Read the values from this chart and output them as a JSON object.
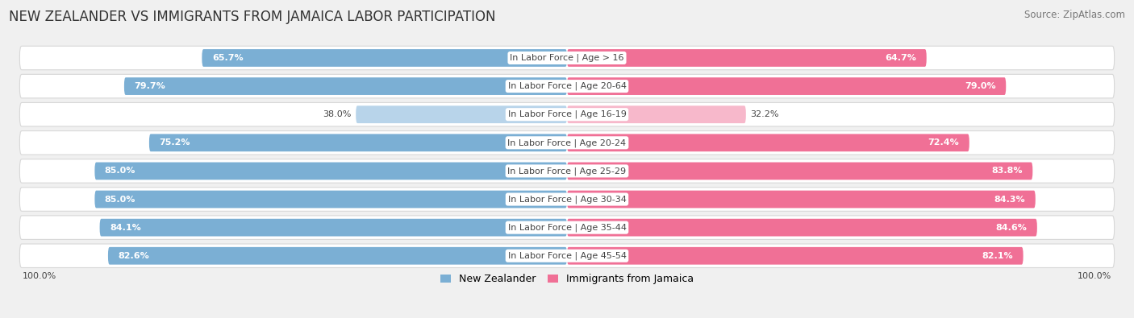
{
  "title": "NEW ZEALANDER VS IMMIGRANTS FROM JAMAICA LABOR PARTICIPATION",
  "source": "Source: ZipAtlas.com",
  "categories": [
    "In Labor Force | Age > 16",
    "In Labor Force | Age 20-64",
    "In Labor Force | Age 16-19",
    "In Labor Force | Age 20-24",
    "In Labor Force | Age 25-29",
    "In Labor Force | Age 30-34",
    "In Labor Force | Age 35-44",
    "In Labor Force | Age 45-54"
  ],
  "nz_values": [
    65.7,
    79.7,
    38.0,
    75.2,
    85.0,
    85.0,
    84.1,
    82.6
  ],
  "imm_values": [
    64.7,
    79.0,
    32.2,
    72.4,
    83.8,
    84.3,
    84.6,
    82.1
  ],
  "nz_color": "#7bafd4",
  "nz_color_light": "#b8d4ea",
  "imm_color": "#f07096",
  "imm_color_light": "#f7b8cb",
  "bg_color": "#f0f0f0",
  "row_bg": "#ffffff",
  "row_border": "#d8d8d8",
  "label_color": "#555555",
  "dark_label_color": "#444444",
  "max_value": 100.0,
  "title_fontsize": 12,
  "label_fontsize": 8.0,
  "value_fontsize": 8.0,
  "legend_fontsize": 9,
  "source_fontsize": 8.5,
  "legend_label_nz": "New Zealander",
  "legend_label_imm": "Immigrants from Jamaica",
  "bottom_label": "100.0%"
}
